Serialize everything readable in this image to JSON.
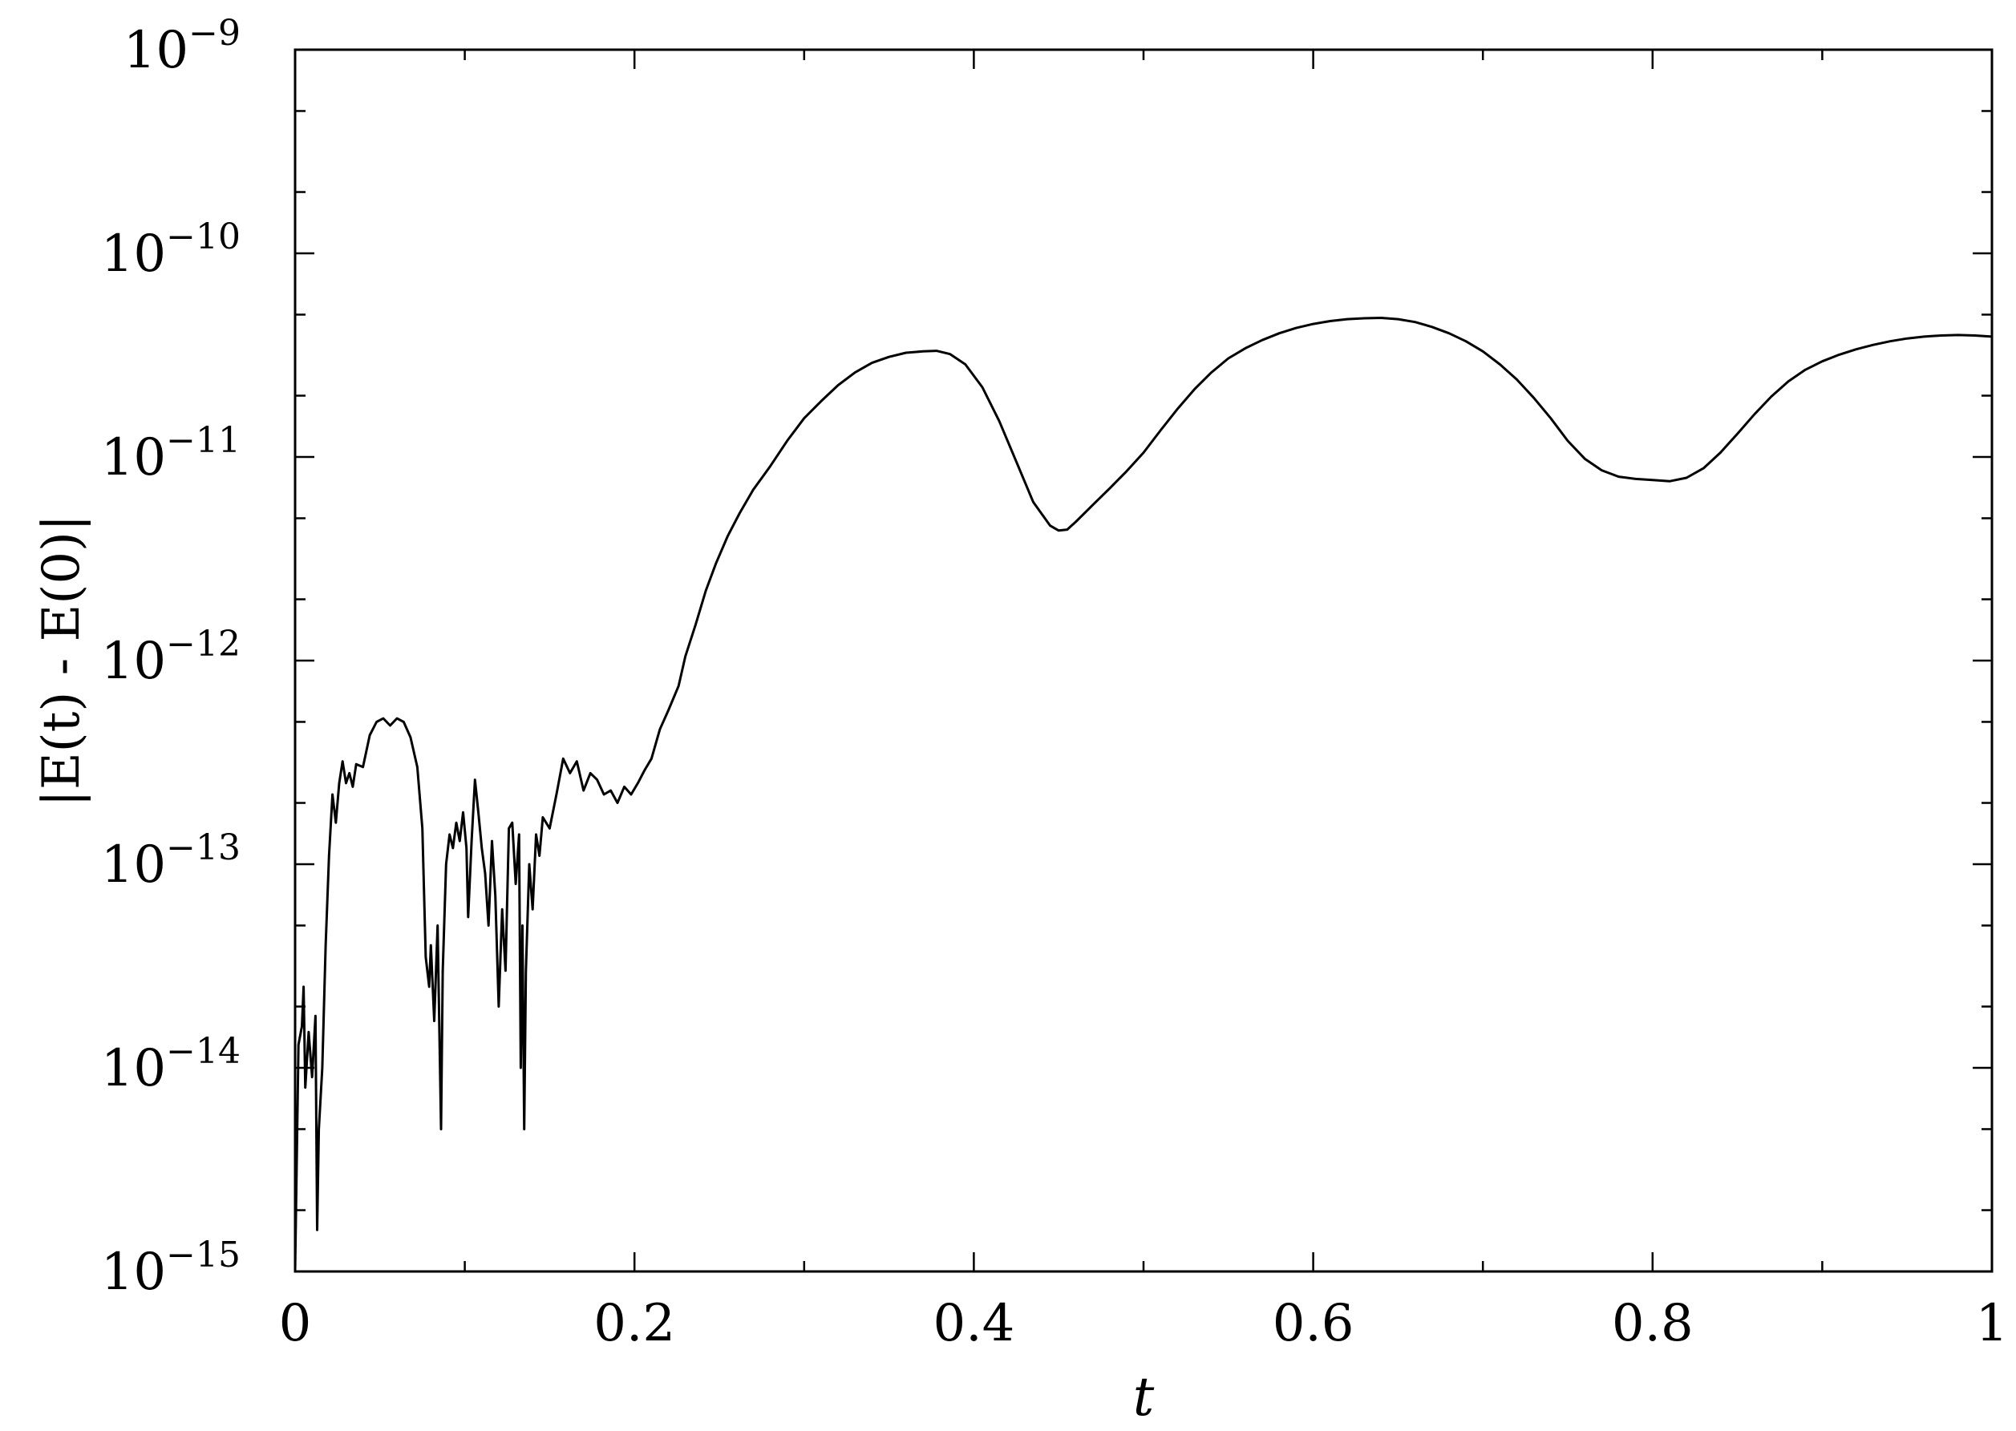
{
  "chart_data": {
    "type": "line",
    "title": "",
    "xlabel": "t",
    "ylabel": "|E(t) - E(0)|",
    "xlim": [
      0,
      1
    ],
    "ylim": [
      1e-15,
      1e-09
    ],
    "yscale": "log",
    "grid": false,
    "x_ticks": [
      {
        "value": 0,
        "label": "0"
      },
      {
        "value": 0.2,
        "label": "0.2"
      },
      {
        "value": 0.4,
        "label": "0.4"
      },
      {
        "value": 0.6,
        "label": "0.6"
      },
      {
        "value": 0.8,
        "label": "0.8"
      },
      {
        "value": 1,
        "label": "1"
      }
    ],
    "y_ticks": [
      {
        "value": 1e-15,
        "base": "10",
        "exp": "−15"
      },
      {
        "value": 1e-14,
        "base": "10",
        "exp": "−14"
      },
      {
        "value": 1e-13,
        "base": "10",
        "exp": "−13"
      },
      {
        "value": 1e-12,
        "base": "10",
        "exp": "−12"
      },
      {
        "value": 1e-11,
        "base": "10",
        "exp": "−11"
      },
      {
        "value": 1e-10,
        "base": "10",
        "exp": "−10"
      },
      {
        "value": 1e-09,
        "base": "10",
        "exp": "−9"
      }
    ],
    "series": [
      {
        "color": "#000000",
        "points": [
          [
            0.0,
            1e-15
          ],
          [
            0.002,
            1.3e-14
          ],
          [
            0.004,
            1.6e-14
          ],
          [
            0.005,
            2.5e-14
          ],
          [
            0.006,
            8e-15
          ],
          [
            0.008,
            1.5e-14
          ],
          [
            0.01,
            9e-15
          ],
          [
            0.012,
            1.8e-14
          ],
          [
            0.013,
            1.6e-15
          ],
          [
            0.014,
            5e-15
          ],
          [
            0.016,
            1e-14
          ],
          [
            0.018,
            4e-14
          ],
          [
            0.02,
            1.1e-13
          ],
          [
            0.022,
            2.2e-13
          ],
          [
            0.024,
            1.6e-13
          ],
          [
            0.026,
            2.5e-13
          ],
          [
            0.028,
            3.2e-13
          ],
          [
            0.03,
            2.5e-13
          ],
          [
            0.032,
            2.8e-13
          ],
          [
            0.034,
            2.4e-13
          ],
          [
            0.036,
            3.1e-13
          ],
          [
            0.04,
            3e-13
          ],
          [
            0.044,
            4.3e-13
          ],
          [
            0.048,
            5e-13
          ],
          [
            0.052,
            5.2e-13
          ],
          [
            0.056,
            4.8e-13
          ],
          [
            0.06,
            5.2e-13
          ],
          [
            0.064,
            5e-13
          ],
          [
            0.068,
            4.2e-13
          ],
          [
            0.072,
            3e-13
          ],
          [
            0.075,
            1.5e-13
          ],
          [
            0.077,
            3.5e-14
          ],
          [
            0.079,
            2.5e-14
          ],
          [
            0.08,
            4e-14
          ],
          [
            0.082,
            1.7e-14
          ],
          [
            0.084,
            5e-14
          ],
          [
            0.086,
            5e-15
          ],
          [
            0.087,
            3e-14
          ],
          [
            0.089,
            1e-13
          ],
          [
            0.091,
            1.4e-13
          ],
          [
            0.093,
            1.2e-13
          ],
          [
            0.095,
            1.6e-13
          ],
          [
            0.097,
            1.3e-13
          ],
          [
            0.099,
            1.8e-13
          ],
          [
            0.101,
            1.2e-13
          ],
          [
            0.102,
            5.5e-14
          ],
          [
            0.104,
            1.3e-13
          ],
          [
            0.106,
            2.6e-13
          ],
          [
            0.108,
            1.8e-13
          ],
          [
            0.11,
            1.2e-13
          ],
          [
            0.112,
            9e-14
          ],
          [
            0.114,
            5e-14
          ],
          [
            0.116,
            1.3e-13
          ],
          [
            0.118,
            7e-14
          ],
          [
            0.12,
            2e-14
          ],
          [
            0.122,
            6e-14
          ],
          [
            0.124,
            3e-14
          ],
          [
            0.126,
            1.5e-13
          ],
          [
            0.128,
            1.6e-13
          ],
          [
            0.13,
            8e-14
          ],
          [
            0.132,
            1.4e-13
          ],
          [
            0.133,
            1e-14
          ],
          [
            0.134,
            5e-14
          ],
          [
            0.135,
            5e-15
          ],
          [
            0.136,
            3e-14
          ],
          [
            0.138,
            1e-13
          ],
          [
            0.14,
            6e-14
          ],
          [
            0.142,
            1.4e-13
          ],
          [
            0.144,
            1.1e-13
          ],
          [
            0.146,
            1.7e-13
          ],
          [
            0.15,
            1.5e-13
          ],
          [
            0.154,
            2.2e-13
          ],
          [
            0.158,
            3.3e-13
          ],
          [
            0.162,
            2.8e-13
          ],
          [
            0.166,
            3.2e-13
          ],
          [
            0.17,
            2.3e-13
          ],
          [
            0.174,
            2.8e-13
          ],
          [
            0.178,
            2.6e-13
          ],
          [
            0.182,
            2.2e-13
          ],
          [
            0.186,
            2.3e-13
          ],
          [
            0.19,
            2e-13
          ],
          [
            0.194,
            2.4e-13
          ],
          [
            0.198,
            2.2e-13
          ],
          [
            0.202,
            2.5e-13
          ],
          [
            0.206,
            2.9e-13
          ],
          [
            0.21,
            3.3e-13
          ],
          [
            0.215,
            4.6e-13
          ],
          [
            0.22,
            5.7e-13
          ],
          [
            0.226,
            7.5e-13
          ],
          [
            0.23,
            1.05e-12
          ],
          [
            0.236,
            1.5e-12
          ],
          [
            0.242,
            2.2e-12
          ],
          [
            0.248,
            3e-12
          ],
          [
            0.255,
            4.1e-12
          ],
          [
            0.262,
            5.3e-12
          ],
          [
            0.27,
            6.9e-12
          ],
          [
            0.28,
            9e-12
          ],
          [
            0.29,
            1.2e-11
          ],
          [
            0.3,
            1.55e-11
          ],
          [
            0.31,
            1.88e-11
          ],
          [
            0.32,
            2.25e-11
          ],
          [
            0.33,
            2.6e-11
          ],
          [
            0.34,
            2.9e-11
          ],
          [
            0.35,
            3.1e-11
          ],
          [
            0.36,
            3.25e-11
          ],
          [
            0.37,
            3.3e-11
          ],
          [
            0.378,
            3.32e-11
          ],
          [
            0.386,
            3.2e-11
          ],
          [
            0.395,
            2.85e-11
          ],
          [
            0.405,
            2.2e-11
          ],
          [
            0.415,
            1.5e-11
          ],
          [
            0.425,
            9.5e-12
          ],
          [
            0.435,
            6e-12
          ],
          [
            0.445,
            4.6e-12
          ],
          [
            0.45,
            4.35e-12
          ],
          [
            0.455,
            4.4e-12
          ],
          [
            0.46,
            4.8e-12
          ],
          [
            0.47,
            5.8e-12
          ],
          [
            0.48,
            7e-12
          ],
          [
            0.49,
            8.5e-12
          ],
          [
            0.5,
            1.05e-11
          ],
          [
            0.51,
            1.35e-11
          ],
          [
            0.52,
            1.72e-11
          ],
          [
            0.53,
            2.15e-11
          ],
          [
            0.54,
            2.6e-11
          ],
          [
            0.55,
            3.05e-11
          ],
          [
            0.56,
            3.42e-11
          ],
          [
            0.57,
            3.75e-11
          ],
          [
            0.58,
            4.05e-11
          ],
          [
            0.59,
            4.3e-11
          ],
          [
            0.6,
            4.5e-11
          ],
          [
            0.61,
            4.65e-11
          ],
          [
            0.62,
            4.75e-11
          ],
          [
            0.63,
            4.8e-11
          ],
          [
            0.64,
            4.82e-11
          ],
          [
            0.65,
            4.75e-11
          ],
          [
            0.66,
            4.6e-11
          ],
          [
            0.67,
            4.35e-11
          ],
          [
            0.68,
            4.05e-11
          ],
          [
            0.69,
            3.7e-11
          ],
          [
            0.7,
            3.3e-11
          ],
          [
            0.71,
            2.85e-11
          ],
          [
            0.72,
            2.4e-11
          ],
          [
            0.73,
            1.95e-11
          ],
          [
            0.74,
            1.55e-11
          ],
          [
            0.75,
            1.2e-11
          ],
          [
            0.76,
            9.8e-12
          ],
          [
            0.77,
            8.6e-12
          ],
          [
            0.78,
            8e-12
          ],
          [
            0.79,
            7.8e-12
          ],
          [
            0.8,
            7.7e-12
          ],
          [
            0.81,
            7.6e-12
          ],
          [
            0.82,
            7.9e-12
          ],
          [
            0.83,
            8.8e-12
          ],
          [
            0.84,
            1.05e-11
          ],
          [
            0.85,
            1.3e-11
          ],
          [
            0.86,
            1.62e-11
          ],
          [
            0.87,
            1.98e-11
          ],
          [
            0.88,
            2.35e-11
          ],
          [
            0.89,
            2.68e-11
          ],
          [
            0.9,
            2.95e-11
          ],
          [
            0.91,
            3.18e-11
          ],
          [
            0.92,
            3.38e-11
          ],
          [
            0.93,
            3.55e-11
          ],
          [
            0.94,
            3.7e-11
          ],
          [
            0.95,
            3.82e-11
          ],
          [
            0.96,
            3.9e-11
          ],
          [
            0.97,
            3.95e-11
          ],
          [
            0.98,
            3.97e-11
          ],
          [
            0.99,
            3.95e-11
          ],
          [
            1.0,
            3.9e-11
          ]
        ]
      }
    ]
  }
}
